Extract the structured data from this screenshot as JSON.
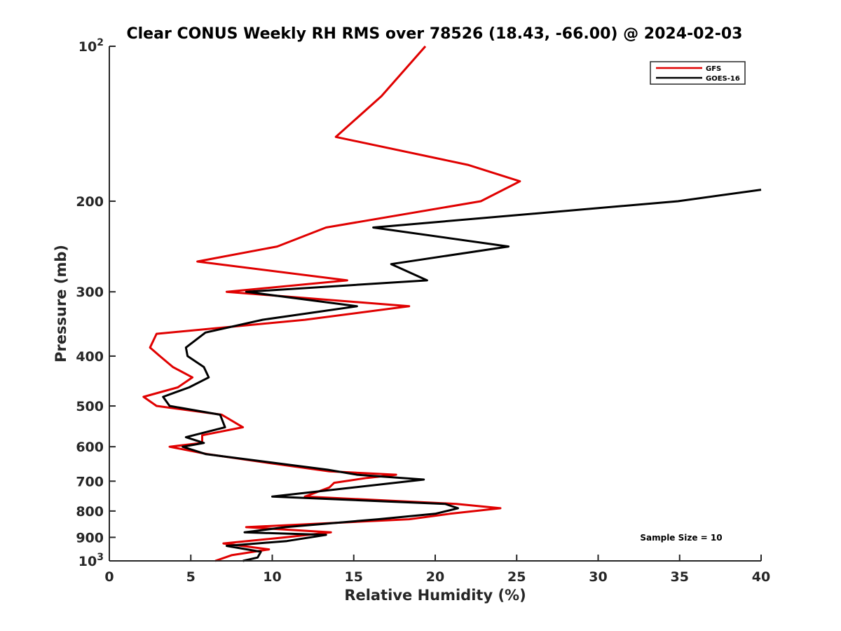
{
  "chart_data": {
    "type": "line",
    "title": "Clear CONUS Weekly RH RMS over 78526 (18.43, -66.00) @ 2024-02-03",
    "xlabel": "Relative Humidity (%)",
    "ylabel": "Pressure (mb)",
    "xlim": [
      0,
      40
    ],
    "ylim": [
      100,
      1000
    ],
    "y_scale": "log",
    "y_reversed": true,
    "x_ticks": [
      0,
      5,
      10,
      15,
      20,
      25,
      30,
      35,
      40
    ],
    "x_tick_labels": [
      "0",
      "5",
      "10",
      "15",
      "20",
      "25",
      "30",
      "35",
      "40"
    ],
    "y_ticks": [
      100,
      200,
      300,
      400,
      500,
      600,
      700,
      800,
      900,
      1000
    ],
    "y_tick_labels": [
      {
        "base": "10",
        "exp": "2"
      },
      {
        "base": "200",
        "exp": ""
      },
      {
        "base": "300",
        "exp": ""
      },
      {
        "base": "400",
        "exp": ""
      },
      {
        "base": "500",
        "exp": ""
      },
      {
        "base": "600",
        "exp": ""
      },
      {
        "base": "700",
        "exp": ""
      },
      {
        "base": "800",
        "exp": ""
      },
      {
        "base": "900",
        "exp": ""
      },
      {
        "base": "10",
        "exp": "3"
      }
    ],
    "grid": false,
    "legend_position": "top-right",
    "series": [
      {
        "name": "GFS",
        "color": "#e00000",
        "points": [
          [
            19.4,
            100
          ],
          [
            16.7,
            125
          ],
          [
            13.9,
            150
          ],
          [
            22.0,
            170
          ],
          [
            25.2,
            183
          ],
          [
            22.8,
            200
          ],
          [
            13.3,
            225
          ],
          [
            10.3,
            245
          ],
          [
            5.4,
            262
          ],
          [
            14.6,
            285
          ],
          [
            7.2,
            300
          ],
          [
            18.4,
            320
          ],
          [
            12.0,
            340
          ],
          [
            2.9,
            362
          ],
          [
            2.5,
            385
          ],
          [
            3.1,
            400
          ],
          [
            3.9,
            420
          ],
          [
            5.1,
            440
          ],
          [
            4.2,
            460
          ],
          [
            2.1,
            480
          ],
          [
            2.9,
            500
          ],
          [
            6.9,
            520
          ],
          [
            8.2,
            550
          ],
          [
            5.7,
            570
          ],
          [
            5.7,
            590
          ],
          [
            3.7,
            600
          ],
          [
            6.0,
            620
          ],
          [
            10.5,
            650
          ],
          [
            13.5,
            670
          ],
          [
            17.6,
            680
          ],
          [
            15.8,
            690
          ],
          [
            13.8,
            705
          ],
          [
            13.5,
            720
          ],
          [
            12.0,
            750
          ],
          [
            21.3,
            775
          ],
          [
            24.0,
            790
          ],
          [
            20.9,
            810
          ],
          [
            18.4,
            830
          ],
          [
            8.4,
            860
          ],
          [
            13.6,
            880
          ],
          [
            10.8,
            900
          ],
          [
            7.0,
            925
          ],
          [
            9.8,
            950
          ],
          [
            7.5,
            975
          ],
          [
            6.5,
            1000
          ]
        ]
      },
      {
        "name": "GOES-16",
        "color": "#000000",
        "points": [
          [
            40.0,
            190
          ],
          [
            34.9,
            200
          ],
          [
            16.2,
            225
          ],
          [
            24.5,
            245
          ],
          [
            17.3,
            265
          ],
          [
            19.5,
            285
          ],
          [
            8.4,
            300
          ],
          [
            15.2,
            320
          ],
          [
            9.4,
            340
          ],
          [
            5.9,
            360
          ],
          [
            4.7,
            385
          ],
          [
            4.8,
            400
          ],
          [
            5.8,
            420
          ],
          [
            6.1,
            440
          ],
          [
            4.9,
            460
          ],
          [
            3.3,
            480
          ],
          [
            3.7,
            500
          ],
          [
            6.8,
            520
          ],
          [
            7.1,
            550
          ],
          [
            4.7,
            575
          ],
          [
            5.8,
            590
          ],
          [
            4.5,
            600
          ],
          [
            5.9,
            620
          ],
          [
            13.4,
            665
          ],
          [
            15.2,
            680
          ],
          [
            19.3,
            695
          ],
          [
            10.0,
            750
          ],
          [
            20.6,
            775
          ],
          [
            21.4,
            790
          ],
          [
            20.0,
            810
          ],
          [
            16.5,
            830
          ],
          [
            10.8,
            860
          ],
          [
            8.3,
            880
          ],
          [
            13.3,
            890
          ],
          [
            10.9,
            915
          ],
          [
            7.2,
            935
          ],
          [
            9.3,
            960
          ],
          [
            9.1,
            985
          ],
          [
            8.2,
            1000
          ]
        ]
      }
    ],
    "annotation": "Sample Size = 10"
  }
}
